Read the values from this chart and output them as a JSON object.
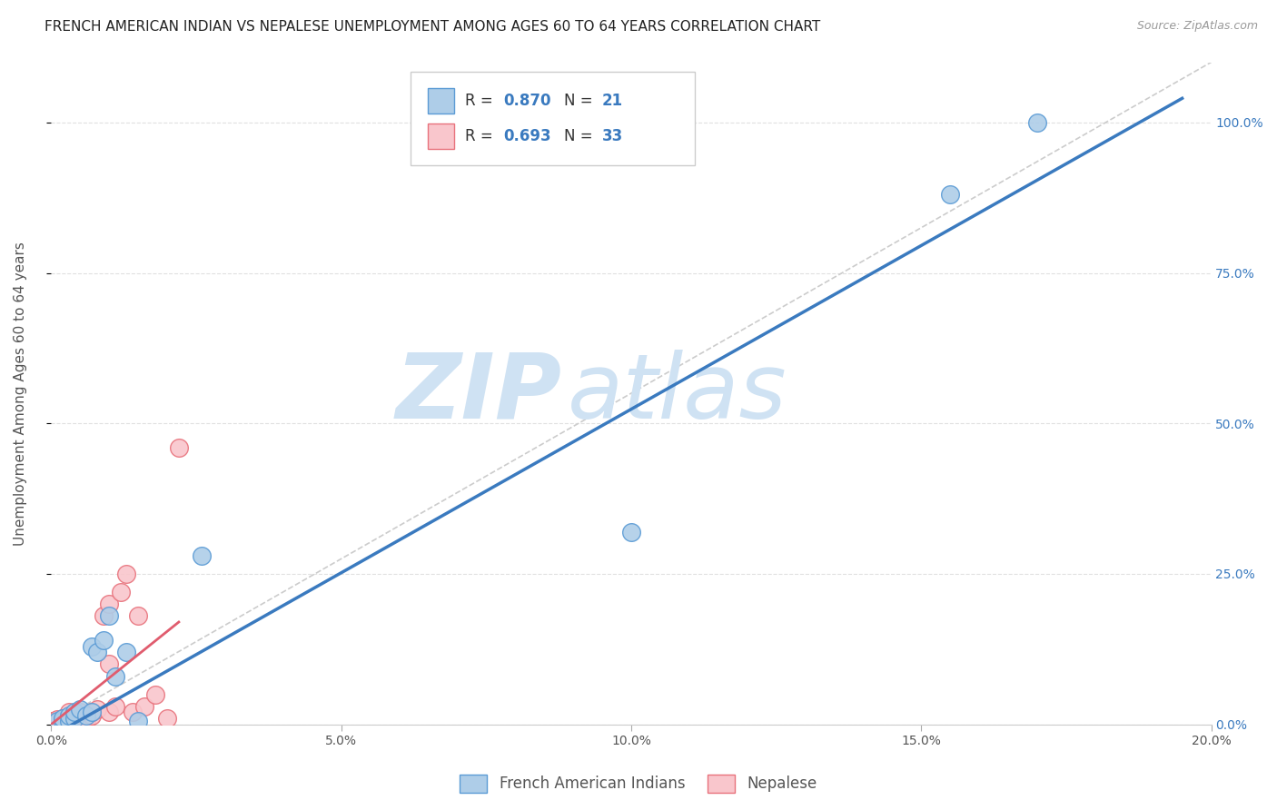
{
  "title": "FRENCH AMERICAN INDIAN VS NEPALESE UNEMPLOYMENT AMONG AGES 60 TO 64 YEARS CORRELATION CHART",
  "source": "Source: ZipAtlas.com",
  "ylabel": "Unemployment Among Ages 60 to 64 years",
  "xlim": [
    0.0,
    0.2
  ],
  "ylim": [
    0.0,
    1.1
  ],
  "xticks": [
    0.0,
    0.05,
    0.1,
    0.15,
    0.2
  ],
  "xticklabels": [
    "0.0%",
    "5.0%",
    "10.0%",
    "15.0%",
    "20.0%"
  ],
  "yticks": [
    0.0,
    0.25,
    0.5,
    0.75,
    1.0
  ],
  "yticklabels": [
    "0.0%",
    "25.0%",
    "50.0%",
    "75.0%",
    "100.0%"
  ],
  "legend_r1": "R = 0.870",
  "legend_n1": "N = 21",
  "legend_r2": "R = 0.693",
  "legend_n2": "N = 33",
  "blue_scatter_x": [
    0.001,
    0.002,
    0.002,
    0.003,
    0.003,
    0.004,
    0.004,
    0.005,
    0.006,
    0.007,
    0.007,
    0.008,
    0.009,
    0.01,
    0.011,
    0.013,
    0.015,
    0.026,
    0.1,
    0.155,
    0.17
  ],
  "blue_scatter_y": [
    0.005,
    0.005,
    0.01,
    0.005,
    0.015,
    0.01,
    0.02,
    0.025,
    0.015,
    0.02,
    0.13,
    0.12,
    0.14,
    0.18,
    0.08,
    0.12,
    0.005,
    0.28,
    0.32,
    0.88,
    1.0
  ],
  "pink_scatter_x": [
    0.0,
    0.0,
    0.001,
    0.001,
    0.002,
    0.002,
    0.002,
    0.003,
    0.003,
    0.003,
    0.004,
    0.004,
    0.005,
    0.005,
    0.005,
    0.006,
    0.006,
    0.007,
    0.007,
    0.008,
    0.009,
    0.01,
    0.01,
    0.01,
    0.011,
    0.012,
    0.013,
    0.014,
    0.015,
    0.016,
    0.018,
    0.02,
    0.022
  ],
  "pink_scatter_y": [
    0.002,
    0.005,
    0.003,
    0.008,
    0.003,
    0.005,
    0.01,
    0.003,
    0.008,
    0.02,
    0.005,
    0.012,
    0.002,
    0.008,
    0.02,
    0.005,
    0.01,
    0.015,
    0.02,
    0.025,
    0.18,
    0.02,
    0.1,
    0.2,
    0.03,
    0.22,
    0.25,
    0.02,
    0.18,
    0.03,
    0.05,
    0.01,
    0.46
  ],
  "blue_line_x": [
    0.0,
    0.195
  ],
  "blue_line_y": [
    -0.02,
    1.04
  ],
  "pink_line_x": [
    0.0,
    0.022
  ],
  "pink_line_y": [
    0.0,
    0.17
  ],
  "diag_line_x": [
    0.0,
    0.2
  ],
  "diag_line_y": [
    0.0,
    1.1
  ],
  "blue_color": "#aecde8",
  "blue_edge": "#5b9bd5",
  "pink_color": "#f9c6cc",
  "pink_edge": "#e8727c",
  "blue_line_color": "#3a7abf",
  "pink_line_color": "#e05c6e",
  "diag_color": "#cccccc",
  "watermark_zip": "ZIP",
  "watermark_atlas": "atlas",
  "watermark_color": "#cfe2f3",
  "title_fontsize": 11,
  "axis_label_fontsize": 11,
  "tick_fontsize": 10,
  "legend_fontsize": 12,
  "right_tick_color": "#3a7abf",
  "value_color": "#3a7abf",
  "background_color": "#ffffff"
}
